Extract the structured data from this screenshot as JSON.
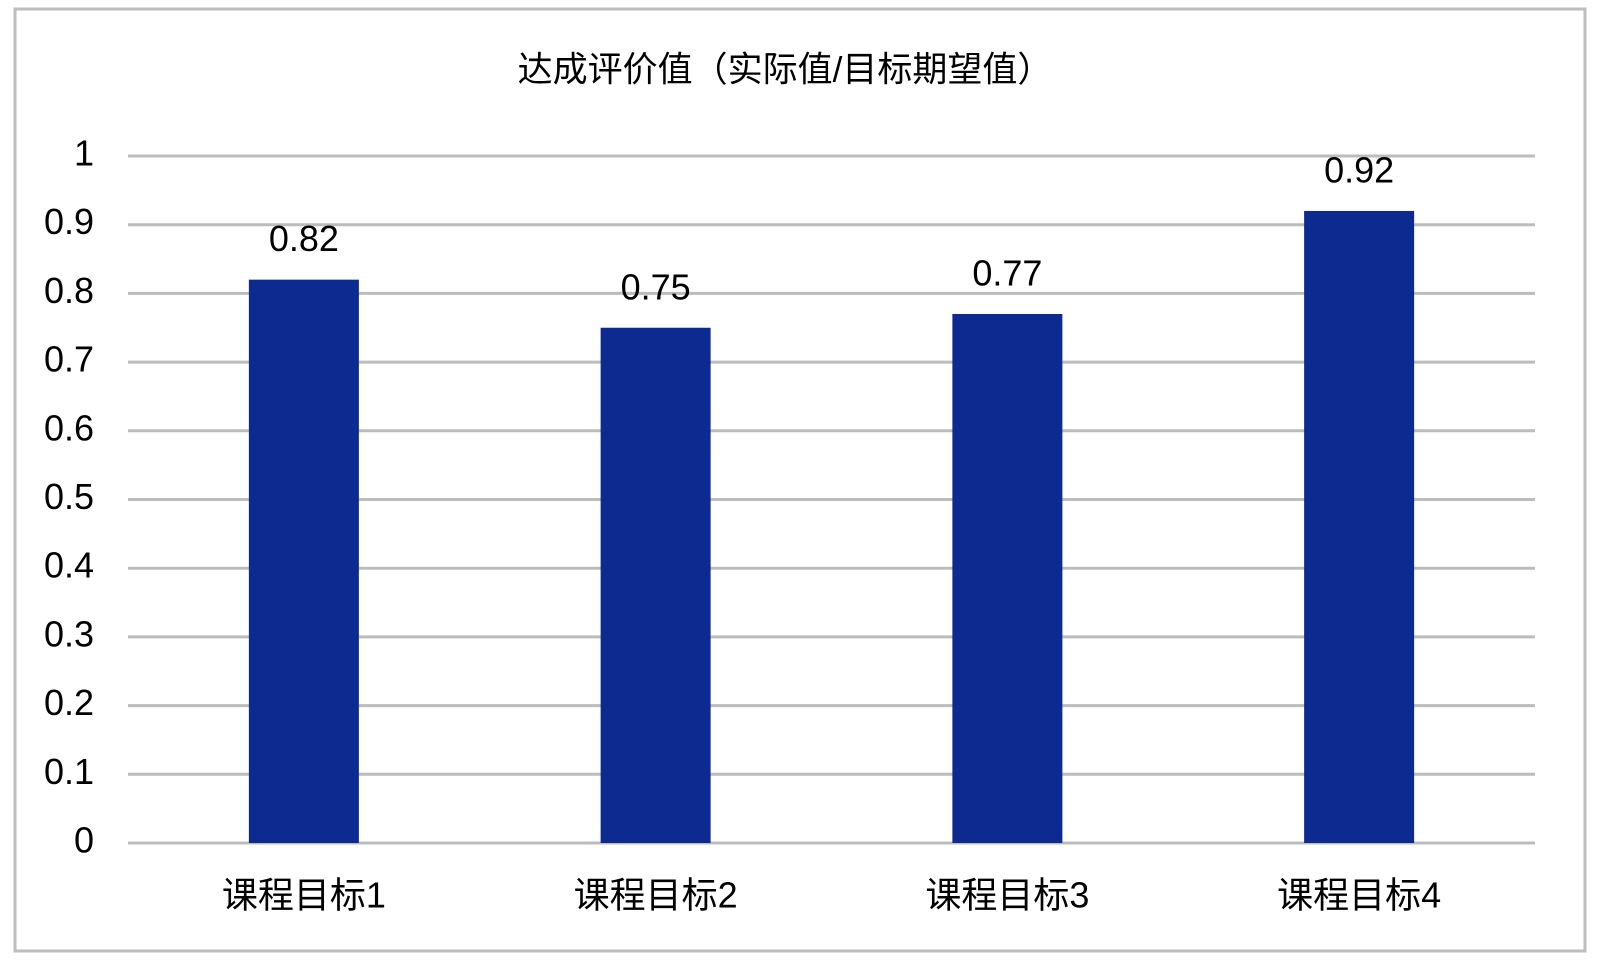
{
  "chart_data": {
    "type": "bar",
    "title": "达成评价值（实际值/目标期望值）",
    "categories": [
      "课程目标1",
      "课程目标2",
      "课程目标3",
      "课程目标4"
    ],
    "values": [
      0.82,
      0.75,
      0.77,
      0.92
    ],
    "color": "#0c2a8f",
    "ylim": [
      0,
      1
    ],
    "yticks": [
      0,
      0.1,
      0.2,
      0.3,
      0.4,
      0.5,
      0.6,
      0.7,
      0.8,
      0.9,
      1
    ],
    "grid": true
  }
}
